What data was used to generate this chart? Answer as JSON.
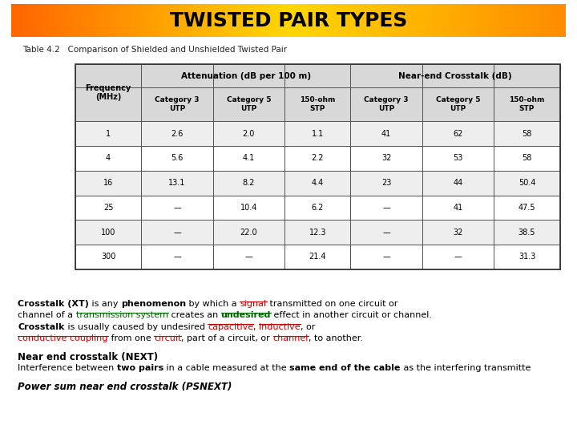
{
  "title": "TWISTED PAIR TYPES",
  "title_border_color": "#7B3FA0",
  "table_caption": "Table 4.2   Comparison of Shielded and Unshielded Twisted Pair",
  "col_headers_row2": [
    "Frequency\n(MHz)",
    "Category 3\nUTP",
    "Category 5\nUTP",
    "150-ohm\nSTP",
    "Category 3\nUTP",
    "Category 5\nUTP",
    "150-ohm\nSTP"
  ],
  "table_data": [
    [
      "1",
      "2.6",
      "2.0",
      "1.1",
      "41",
      "62",
      "58"
    ],
    [
      "4",
      "5.6",
      "4.1",
      "2.2",
      "32",
      "53",
      "58"
    ],
    [
      "16",
      "13.1",
      "8.2",
      "4.4",
      "23",
      "44",
      "50.4"
    ],
    [
      "25",
      "—",
      "10.4",
      "6.2",
      "—",
      "41",
      "47.5"
    ],
    [
      "100",
      "—",
      "22.0",
      "12.3",
      "—",
      "32",
      "38.5"
    ],
    [
      "300",
      "—",
      "—",
      "21.4",
      "—",
      "—",
      "31.3"
    ]
  ],
  "text_blocks": [
    [
      {
        "text": "Crosstalk (XT)",
        "bold": true,
        "underline": false,
        "color": "#000000"
      },
      {
        "text": " is any ",
        "bold": false,
        "underline": false,
        "color": "#000000"
      },
      {
        "text": "phenomenon",
        "bold": true,
        "underline": false,
        "color": "#000000"
      },
      {
        "text": " by which a ",
        "bold": false,
        "underline": false,
        "color": "#000000"
      },
      {
        "text": "signal",
        "bold": false,
        "underline": true,
        "color": "#CC0000"
      },
      {
        "text": " transmitted on one circuit or",
        "bold": false,
        "underline": false,
        "color": "#000000"
      }
    ],
    [
      {
        "text": "channel of a ",
        "bold": false,
        "underline": false,
        "color": "#000000"
      },
      {
        "text": "transmission system",
        "bold": false,
        "underline": true,
        "color": "#006600"
      },
      {
        "text": " creates an ",
        "bold": false,
        "underline": false,
        "color": "#000000"
      },
      {
        "text": "undesired",
        "bold": true,
        "underline": true,
        "color": "#006600"
      },
      {
        "text": " effect in another circuit or channel.",
        "bold": false,
        "underline": false,
        "color": "#000000"
      }
    ],
    [
      {
        "text": "Crosstalk",
        "bold": true,
        "underline": false,
        "color": "#000000"
      },
      {
        "text": " is usually caused by undesired ",
        "bold": false,
        "underline": false,
        "color": "#000000"
      },
      {
        "text": "capacitive",
        "bold": false,
        "underline": true,
        "color": "#CC0000"
      },
      {
        "text": ", ",
        "bold": false,
        "underline": false,
        "color": "#000000"
      },
      {
        "text": "inductive",
        "bold": false,
        "underline": true,
        "color": "#CC0000"
      },
      {
        "text": ", or",
        "bold": false,
        "underline": false,
        "color": "#000000"
      }
    ],
    [
      {
        "text": "conductive coupling",
        "bold": false,
        "underline": true,
        "color": "#CC0000"
      },
      {
        "text": " from one ",
        "bold": false,
        "underline": false,
        "color": "#000000"
      },
      {
        "text": "circuit",
        "bold": false,
        "underline": true,
        "color": "#CC0000"
      },
      {
        "text": ", part of a circuit, or ",
        "bold": false,
        "underline": false,
        "color": "#000000"
      },
      {
        "text": "channel",
        "bold": false,
        "underline": true,
        "color": "#CC0000"
      },
      {
        "text": ", to another.",
        "bold": false,
        "underline": false,
        "color": "#000000"
      }
    ]
  ],
  "next_heading": "Near end crosstalk (NEXT)",
  "next_text_parts": [
    {
      "text": "Interference between ",
      "bold": false
    },
    {
      "text": "two pairs",
      "bold": true
    },
    {
      "text": " in a cable measured at the ",
      "bold": false
    },
    {
      "text": "same end of the cable",
      "bold": true
    },
    {
      "text": " as the interfering transmitte",
      "bold": false
    }
  ],
  "psnext_heading": "Power sum near end crosstalk (PSNEXT)",
  "bg_color": "#FFFFFF",
  "header_bg": "#D8D8D8",
  "cell_bg_even": "#EEEEEE",
  "cell_bg_odd": "#FFFFFF"
}
